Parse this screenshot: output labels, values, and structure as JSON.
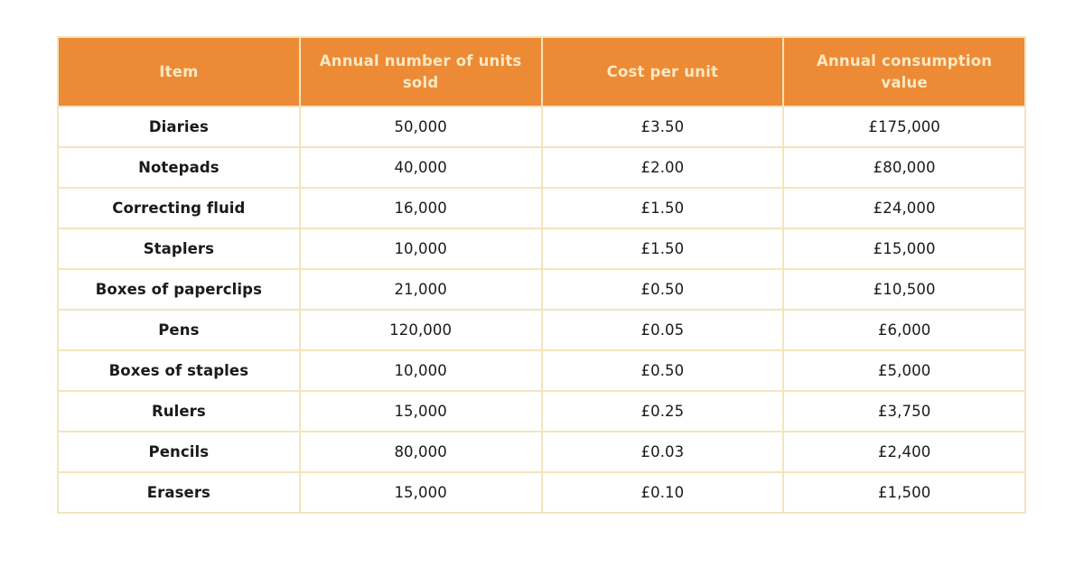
{
  "colors": {
    "header_bg": "#ed8a36",
    "header_text": "#f8e9c2",
    "border": "#f3e5bd",
    "body_text": "#1a1a1a",
    "cell_bg": "#ffffff",
    "page_bg": "#ffffff"
  },
  "chart_data": {
    "type": "table",
    "columns": [
      "Item",
      "Annual number of units sold",
      "Cost per unit",
      "Annual consumption value"
    ],
    "rows": [
      [
        "Diaries",
        "50,000",
        "£3.50",
        "£175,000"
      ],
      [
        "Notepads",
        "40,000",
        "£2.00",
        "£80,000"
      ],
      [
        "Correcting fluid",
        "16,000",
        "£1.50",
        "£24,000"
      ],
      [
        "Staplers",
        "10,000",
        "£1.50",
        "£15,000"
      ],
      [
        "Boxes of paperclips",
        "21,000",
        "£0.50",
        "£10,500"
      ],
      [
        "Pens",
        "120,000",
        "£0.05",
        "£6,000"
      ],
      [
        "Boxes of staples",
        "10,000",
        "£0.50",
        "£5,000"
      ],
      [
        "Rulers",
        "15,000",
        "£0.25",
        "£3,750"
      ],
      [
        "Pencils",
        "80,000",
        "£0.03",
        "£2,400"
      ],
      [
        "Erasers",
        "15,000",
        "£0.10",
        "£1,500"
      ]
    ]
  }
}
